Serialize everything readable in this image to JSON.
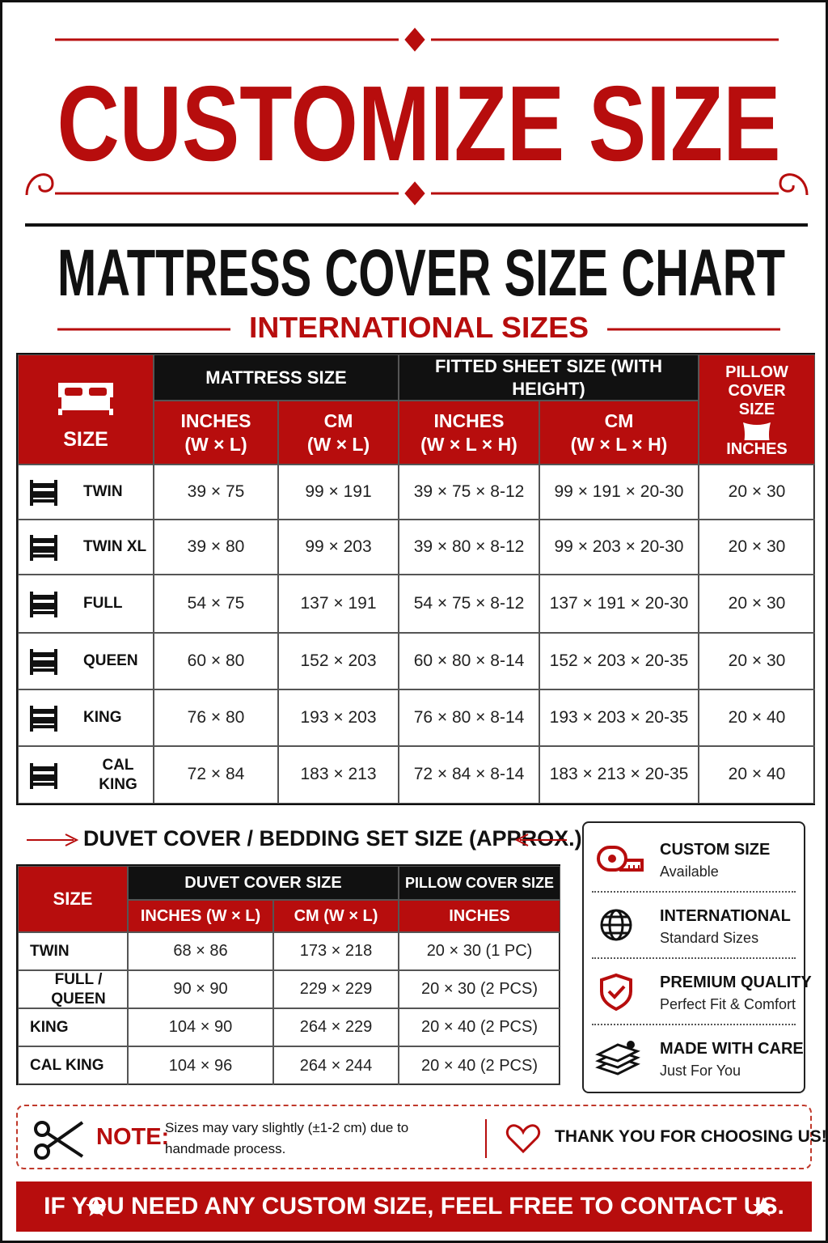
{
  "header": {
    "title": "CUSTOMIZE SIZE",
    "subtitle": "MATTRESS COVER SIZE CHART",
    "tagline": "INTERNATIONAL SIZES"
  },
  "mattress_table": {
    "size_header": "SIZE",
    "groups": [
      "MATTRESS SIZE",
      "FITTED SHEET SIZE (WITH HEIGHT)"
    ],
    "pillow_header": {
      "title": "PILLOW COVER SIZE",
      "unit": "INCHES"
    },
    "subheaders": [
      {
        "label": "INCHES",
        "unit": "(W × L)"
      },
      {
        "label": "CM",
        "unit": "(W × L)"
      },
      {
        "label": "INCHES",
        "unit": "(W × L × H)"
      },
      {
        "label": "CM",
        "unit": "(W × L × H)"
      }
    ],
    "rows": [
      [
        "TWIN",
        "39 × 75",
        "99 × 191",
        "39 × 75 × 8-12",
        "99 × 191 × 20-30",
        "20 × 30"
      ],
      [
        "TWIN XL",
        "39 × 80",
        "99 × 203",
        "39 × 80 × 8-12",
        "99 × 203 × 20-30",
        "20 × 30"
      ],
      [
        "FULL",
        "54 × 75",
        "137 × 191",
        "54 × 75 × 8-12",
        "137 × 191 × 20-30",
        "20 × 30"
      ],
      [
        "QUEEN",
        "60 × 80",
        "152 × 203",
        "60 × 80 × 8-14",
        "152 × 203 × 20-35",
        "20 × 30"
      ],
      [
        "KING",
        "76 × 80",
        "193 × 203",
        "76 × 80 × 8-14",
        "193 × 203 × 20-35",
        "20 × 40"
      ],
      [
        "CAL KING",
        "72 × 84",
        "183 × 213",
        "72 × 84 × 8-14",
        "183 × 213 × 20-35",
        "20 × 40"
      ]
    ]
  },
  "duvet_table": {
    "title": "DUVET COVER / BEDDING SET SIZE (APPROX.)",
    "size_header": "SIZE",
    "duvet_header": "DUVET COVER SIZE",
    "pillow_header": "PILLOW COVER SIZE",
    "subheaders": [
      "INCHES (W × L)",
      "CM (W × L)",
      "INCHES"
    ],
    "rows": [
      [
        "TWIN",
        "68 × 86",
        "173 × 218",
        "20 × 30 (1 PC)"
      ],
      [
        "FULL / QUEEN",
        "90 × 90",
        "229 × 229",
        "20 × 30 (2 PCS)"
      ],
      [
        "KING",
        "104 × 90",
        "264 × 229",
        "20 × 40 (2 PCS)"
      ],
      [
        "CAL KING",
        "104 × 96",
        "264 × 244",
        "20 × 40 (2 PCS)"
      ]
    ]
  },
  "features": [
    {
      "title": "CUSTOM SIZE",
      "subtitle": "Available"
    },
    {
      "title": "INTERNATIONAL",
      "subtitle": "Standard Sizes"
    },
    {
      "title": "PREMIUM QUALITY",
      "subtitle": "Perfect Fit & Comfort"
    },
    {
      "title": "MADE WITH CARE",
      "subtitle": "Just For You"
    }
  ],
  "note": {
    "label": "NOTE:",
    "text": "Sizes may vary slightly (±1-2 cm) due to handmade process.",
    "thanks": "THANK YOU FOR CHOOSING US!"
  },
  "footer": "IF YOU NEED ANY CUSTOM SIZE, FEEL FREE TO CONTACT US."
}
